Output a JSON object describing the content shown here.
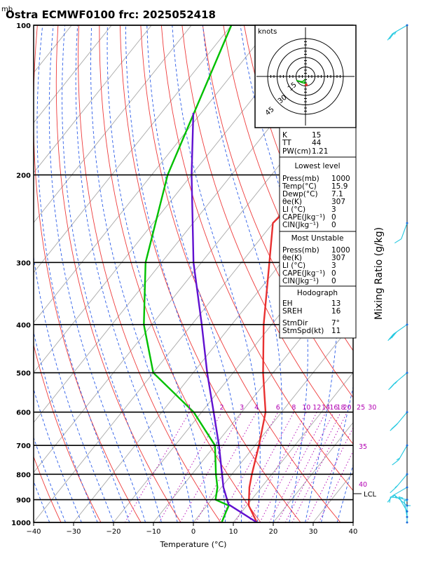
{
  "chart_data": {
    "type": "skew-t",
    "title": "Ostra ECMWF0100 frc: 2025052418",
    "pressure_unit": "mb",
    "xlabel": "Temperature (°C)",
    "right_label": "Mixing Ratio (g/kg)",
    "xlim": [
      -40,
      40
    ],
    "plim": [
      1000,
      100
    ],
    "x_ticks": [
      "−40",
      "−30",
      "−20",
      "−10",
      "0",
      "10",
      "20",
      "30",
      "40"
    ],
    "pressure_levels": [
      1000,
      900,
      800,
      700,
      600,
      500,
      400,
      300,
      200,
      100
    ],
    "mixing_ratio_labels": [
      "1",
      "2",
      "3",
      "4",
      "6",
      "8",
      "10",
      "12",
      "14",
      "16",
      "18",
      "20",
      "25",
      "30"
    ],
    "theta_e_labels": [
      "35",
      "40"
    ],
    "lcl_label": "LCL",
    "series": [
      {
        "name": "Temperature",
        "color": "#e83030",
        "points": [
          [
            1000,
            15.9
          ],
          [
            925,
            10.5
          ],
          [
            850,
            7.0
          ],
          [
            800,
            5.0
          ],
          [
            700,
            1.0
          ],
          [
            600,
            -4.0
          ],
          [
            500,
            -12.5
          ],
          [
            400,
            -22.0
          ],
          [
            300,
            -33.0
          ],
          [
            250,
            -40.0
          ],
          [
            200,
            -37.5
          ],
          [
            100,
            -35.0
          ]
        ]
      },
      {
        "name": "Dewpoint",
        "color": "#00c000",
        "points": [
          [
            1000,
            7.1
          ],
          [
            950,
            6.0
          ],
          [
            925,
            5.5
          ],
          [
            900,
            1.0
          ],
          [
            850,
            -1.0
          ],
          [
            800,
            -4.0
          ],
          [
            700,
            -10.0
          ],
          [
            600,
            -22.0
          ],
          [
            500,
            -40.0
          ],
          [
            400,
            -52.0
          ],
          [
            300,
            -64.0
          ],
          [
            200,
            -76.0
          ],
          [
            100,
            -90.0
          ]
        ]
      },
      {
        "name": "Parcel",
        "color": "#6010d0",
        "points": [
          [
            1000,
            15.9
          ],
          [
            920,
            5.2
          ],
          [
            850,
            0.5
          ],
          [
            700,
            -9.0
          ],
          [
            600,
            -17.0
          ],
          [
            500,
            -26.5
          ],
          [
            400,
            -37.5
          ],
          [
            300,
            -52.0
          ],
          [
            200,
            -70.0
          ],
          [
            150,
            -82.0
          ]
        ]
      }
    ],
    "wind_barbs": [
      {
        "p": 1000,
        "dir": 180,
        "spd": 5
      },
      {
        "p": 975,
        "dir": 190,
        "spd": 5
      },
      {
        "p": 950,
        "dir": 210,
        "spd": 10
      },
      {
        "p": 925,
        "dir": 230,
        "spd": 10
      },
      {
        "p": 900,
        "dir": 260,
        "spd": 10
      },
      {
        "p": 850,
        "dir": 300,
        "spd": 15
      },
      {
        "p": 800,
        "dir": 320,
        "spd": 15
      },
      {
        "p": 700,
        "dir": 330,
        "spd": 15
      },
      {
        "p": 600,
        "dir": 320,
        "spd": 20
      },
      {
        "p": 500,
        "dir": 310,
        "spd": 25
      },
      {
        "p": 400,
        "dir": 305,
        "spd": 30
      },
      {
        "p": 250,
        "dir": 340,
        "spd": 10
      },
      {
        "p": 100,
        "dir": 300,
        "spd": 25
      }
    ],
    "hodograph": {
      "unit_label": "knots",
      "ring_labels": [
        "15",
        "30",
        "45"
      ],
      "trace_uv": [
        [
          0,
          3
        ],
        [
          -2,
          4
        ],
        [
          -4,
          5
        ],
        [
          -6,
          5
        ],
        [
          -12,
          4
        ],
        [
          -5,
          6
        ],
        [
          0,
          7
        ],
        [
          -2,
          5
        ]
      ]
    }
  },
  "indices_box": {
    "rows": [
      {
        "label": "K",
        "value": "15"
      },
      {
        "label": "TT",
        "value": "44"
      },
      {
        "label": "PW(cm)",
        "value": "1.21"
      }
    ]
  },
  "lowest_level": {
    "header": "Lowest level",
    "rows": [
      {
        "label": "Press(mb)",
        "value": "1000"
      },
      {
        "label": "Temp(°C)",
        "value": "15.9"
      },
      {
        "label": "Dewp(°C)",
        "value": "7.1"
      },
      {
        "label": "θe(K)",
        "value": "307"
      },
      {
        "label": "LI (°C)",
        "value": "3"
      },
      {
        "label": "CAPE(Jkg⁻¹)",
        "value": "0"
      },
      {
        "label": "CIN(Jkg⁻¹)",
        "value": "0"
      }
    ]
  },
  "most_unstable": {
    "header": "Most Unstable",
    "rows": [
      {
        "label": "Press(mb)",
        "value": "1000"
      },
      {
        "label": "θe(K)",
        "value": "307"
      },
      {
        "label": "LI (°C)",
        "value": "3"
      },
      {
        "label": "CAPE(Jkg⁻¹)",
        "value": "0"
      },
      {
        "label": "CIN(Jkg⁻¹)",
        "value": "0"
      }
    ]
  },
  "hodograph_box": {
    "header": "Hodograph",
    "rows": [
      {
        "label": "EH",
        "value": "13"
      },
      {
        "label": "SREH",
        "value": "16"
      },
      {
        "label": "StmDir",
        "value": "7°"
      },
      {
        "label": "StmSpd(kt)",
        "value": "11"
      }
    ]
  }
}
